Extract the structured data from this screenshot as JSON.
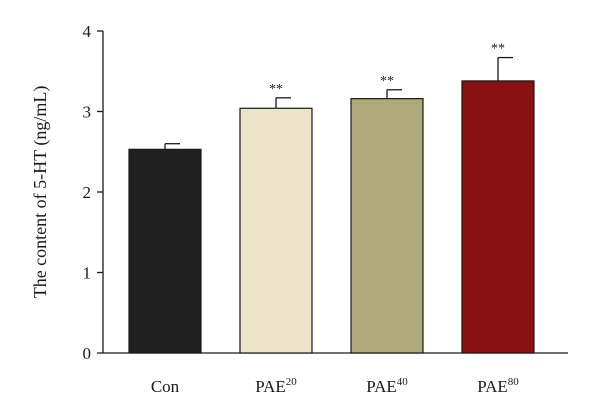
{
  "chart_data": {
    "type": "bar",
    "ylabel": "The content of 5-HT (ng/mL)",
    "ylim": [
      0,
      4
    ],
    "yticks": [
      "0",
      "1",
      "2",
      "3",
      "4"
    ],
    "categories": [
      {
        "base": "Con",
        "sup": ""
      },
      {
        "base": "PAE",
        "sup": "20"
      },
      {
        "base": "PAE",
        "sup": "40"
      },
      {
        "base": "PAE",
        "sup": "80"
      }
    ],
    "values": [
      2.53,
      3.04,
      3.16,
      3.38
    ],
    "errors": [
      0.07,
      0.13,
      0.11,
      0.29
    ],
    "significance": [
      "",
      "**",
      "**",
      "**"
    ],
    "colors": [
      "#202020",
      "#ebe4c8",
      "#ada97b",
      "#8a1111"
    ],
    "grid": false,
    "legend": "none"
  }
}
